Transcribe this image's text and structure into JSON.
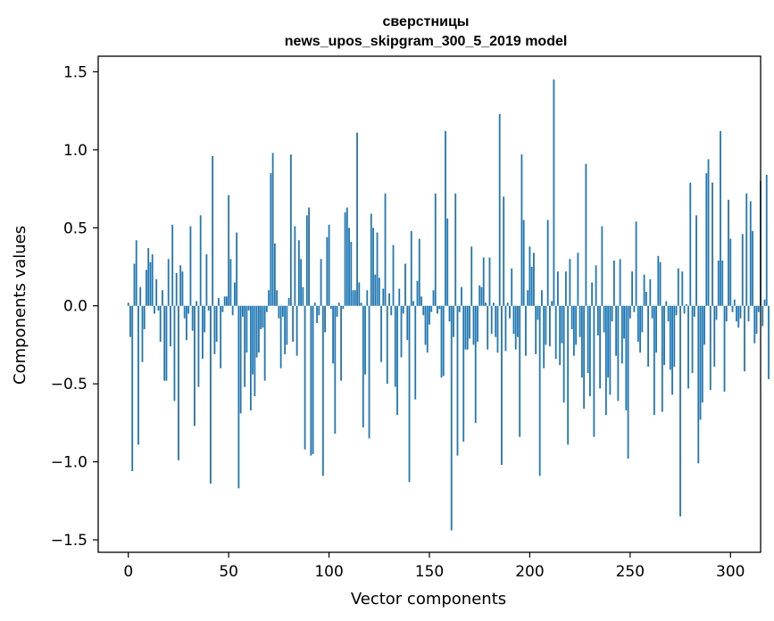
{
  "chart_data": {
    "type": "bar",
    "title": "сверстницы",
    "subtitle": "news_upos_skipgram_300_5_2019 model",
    "xlabel": "Vector components",
    "ylabel": "Components values",
    "xlim": [
      -15,
      315
    ],
    "ylim": [
      -1.58,
      1.6
    ],
    "x_ticks": [
      "0",
      "50",
      "100",
      "150",
      "200",
      "250",
      "300"
    ],
    "y_ticks": [
      "−1.5",
      "−1.0",
      "−0.5",
      "0.0",
      "0.5",
      "1.0",
      "1.5"
    ],
    "bar_color": "#1f77b4",
    "values": [
      0.02,
      -0.2,
      -1.06,
      0.27,
      0.42,
      -0.89,
      0.12,
      -0.36,
      -0.15,
      0.23,
      0.37,
      0.28,
      0.33,
      -0.05,
      0.17,
      -0.03,
      -0.23,
      0.1,
      -0.48,
      -0.48,
      0.3,
      -0.26,
      0.52,
      -0.61,
      0.21,
      -0.99,
      0.26,
      0.22,
      -0.08,
      -0.22,
      -0.05,
      0.51,
      -0.16,
      -0.77,
      0.03,
      -0.52,
      0.58,
      -0.34,
      -0.17,
      0.33,
      -0.03,
      -1.14,
      0.96,
      -0.31,
      -0.23,
      0.05,
      -0.4,
      -0.04,
      0.06,
      0.06,
      0.71,
      0.3,
      -0.06,
      0.15,
      0.47,
      -1.17,
      -0.69,
      -0.07,
      -0.52,
      -0.3,
      -0.03,
      -0.67,
      -0.44,
      -0.58,
      -0.33,
      -0.3,
      -0.15,
      -0.14,
      -0.48,
      -0.04,
      0.1,
      0.85,
      0.98,
      0.4,
      0.1,
      -0.08,
      -0.4,
      -0.07,
      -0.31,
      -0.25,
      0.05,
      0.97,
      -0.23,
      0.51,
      -0.32,
      0.42,
      0.3,
      0.12,
      -0.92,
      0.58,
      0.63,
      -0.96,
      -0.95,
      0.02,
      -0.11,
      -0.06,
      0.3,
      -1.09,
      -0.17,
      0.44,
      0.52,
      -0.02,
      -0.37,
      -0.82,
      -0.07,
      0.02,
      -0.48,
      -0.02,
      0.6,
      0.63,
      0.5,
      0.41,
      0.1,
      0.1,
      1.11,
      0.15,
      0.02,
      -0.78,
      -0.44,
      0.1,
      -0.85,
      0.59,
      0.5,
      0.2,
      0.47,
      0.18,
      -0.36,
      0.11,
      0.72,
      -0.5,
      0.08,
      -0.06,
      0.39,
      -0.52,
      -0.7,
      0.11,
      -0.33,
      -0.05,
      0.27,
      -0.22,
      -1.13,
      0.48,
      0.03,
      -0.6,
      0.16,
      0.43,
      0.06,
      -0.06,
      -0.25,
      -0.3,
      -0.12,
      -0.04,
      0.1,
      0.72,
      -0.05,
      -0.02,
      -0.46,
      -0.45,
      1.12,
      0.56,
      -0.1,
      -1.44,
      -0.2,
      0.72,
      -0.96,
      -0.04,
      0.12,
      -0.87,
      -0.28,
      -0.28,
      -0.21,
      0.38,
      -0.25,
      -0.75,
      -0.23,
      0.13,
      0.12,
      0.31,
      0.02,
      -0.28,
      0.31,
      -0.18,
      0.02,
      -0.2,
      -0.3,
      1.23,
      -1.02,
      0.7,
      -0.29,
      0.02,
      -0.08,
      0.24,
      -0.18,
      -0.28,
      -0.2,
      -0.84,
      0.97,
      0.55,
      -0.32,
      0.1,
      0.38,
      0.25,
      0.34,
      -0.31,
      -0.09,
      -1.09,
      0.1,
      -0.4,
      -0.25,
      0.55,
      -0.26,
      0.03,
      1.45,
      -0.34,
      0.22,
      -0.38,
      -0.24,
      -0.62,
      0.22,
      -0.89,
      0.3,
      -0.15,
      -0.32,
      -0.25,
      0.34,
      -0.2,
      -0.46,
      -0.66,
      0.91,
      -0.43,
      -0.58,
      0.15,
      -0.84,
      0.26,
      -0.19,
      -0.53,
      0.51,
      -0.17,
      -0.7,
      -0.46,
      -0.57,
      -0.1,
      0.29,
      -0.32,
      -0.61,
      0.3,
      -0.37,
      -0.21,
      -0.67,
      -0.98,
      -0.08,
      0.22,
      -0.04,
      0.54,
      -0.23,
      -0.3,
      -0.17,
      0.2,
      0.09,
      -0.39,
      0.17,
      -0.08,
      -0.7,
      -0.3,
      0.32,
      0.28,
      -0.68,
      -0.38,
      0.03,
      -0.1,
      -0.41,
      -0.57,
      -0.39,
      -0.06,
      0.24,
      -1.35,
      0.22,
      -0.05,
      0.01,
      -0.53,
      0.79,
      -0.43,
      -0.07,
      0.58,
      -1.01,
      -0.73,
      -0.62,
      -0.25,
      0.85,
      0.94,
      -0.54,
      0.79,
      -0.39,
      -0.09,
      0.29,
      1.12,
      0.29,
      -0.55,
      -0.1,
      0.68,
      0.43,
      -0.04,
      0.04,
      -0.1,
      -0.14,
      -0.08,
      0.46,
      -0.42,
      0.72,
      -0.1,
      0.67,
      0.48,
      -0.24,
      -0.18,
      -0.04,
      0.8,
      -0.13,
      0.04,
      0.84,
      -0.47
    ]
  }
}
